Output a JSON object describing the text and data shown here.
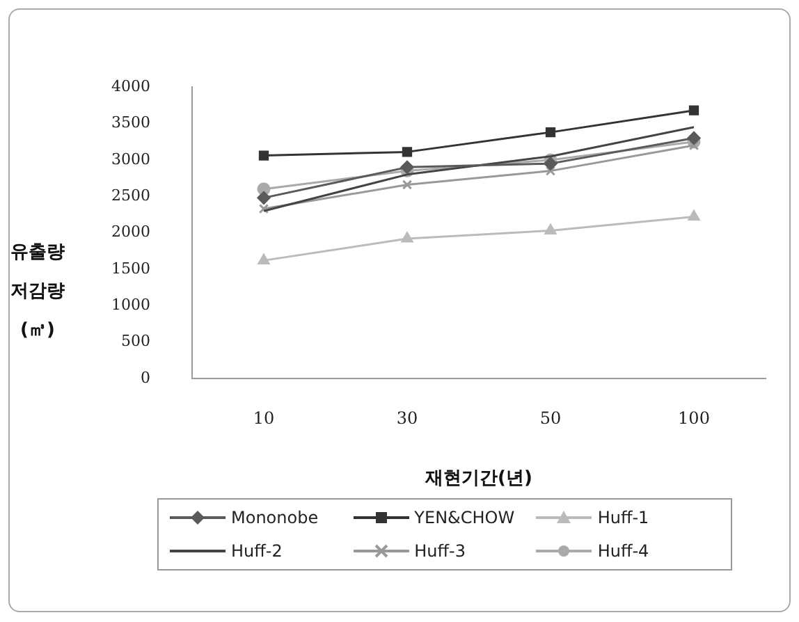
{
  "chart_data": {
    "type": "line",
    "xlabel": "재현기간(년)",
    "ylabel": "유출량 저감량 (㎥)",
    "categories": [
      "10",
      "30",
      "50",
      "100"
    ],
    "ylim": [
      0,
      4000
    ],
    "yticks": [
      0,
      500,
      1000,
      1500,
      2000,
      2500,
      3000,
      3500,
      4000
    ],
    "grid": false,
    "legend": "bottom",
    "series": [
      {
        "name": "Mononobe",
        "color": "#5a5a5a",
        "marker": "diamond",
        "values": [
          2480,
          2900,
          2950,
          3300
        ]
      },
      {
        "name": "YEN&CHOW",
        "color": "#333333",
        "marker": "square",
        "values": [
          3060,
          3110,
          3380,
          3680
        ]
      },
      {
        "name": "Huff-1",
        "color": "#bbbbbb",
        "marker": "triangle",
        "values": [
          1620,
          1920,
          2030,
          2220
        ]
      },
      {
        "name": "Huff-2",
        "color": "#444444",
        "marker": "none",
        "values": [
          2300,
          2800,
          3050,
          3450
        ]
      },
      {
        "name": "Huff-3",
        "color": "#999999",
        "marker": "cross",
        "values": [
          2330,
          2660,
          2850,
          3200
        ]
      },
      {
        "name": "Huff-4",
        "color": "#aaaaaa",
        "marker": "circle",
        "values": [
          2600,
          2850,
          3000,
          3250
        ]
      }
    ]
  }
}
